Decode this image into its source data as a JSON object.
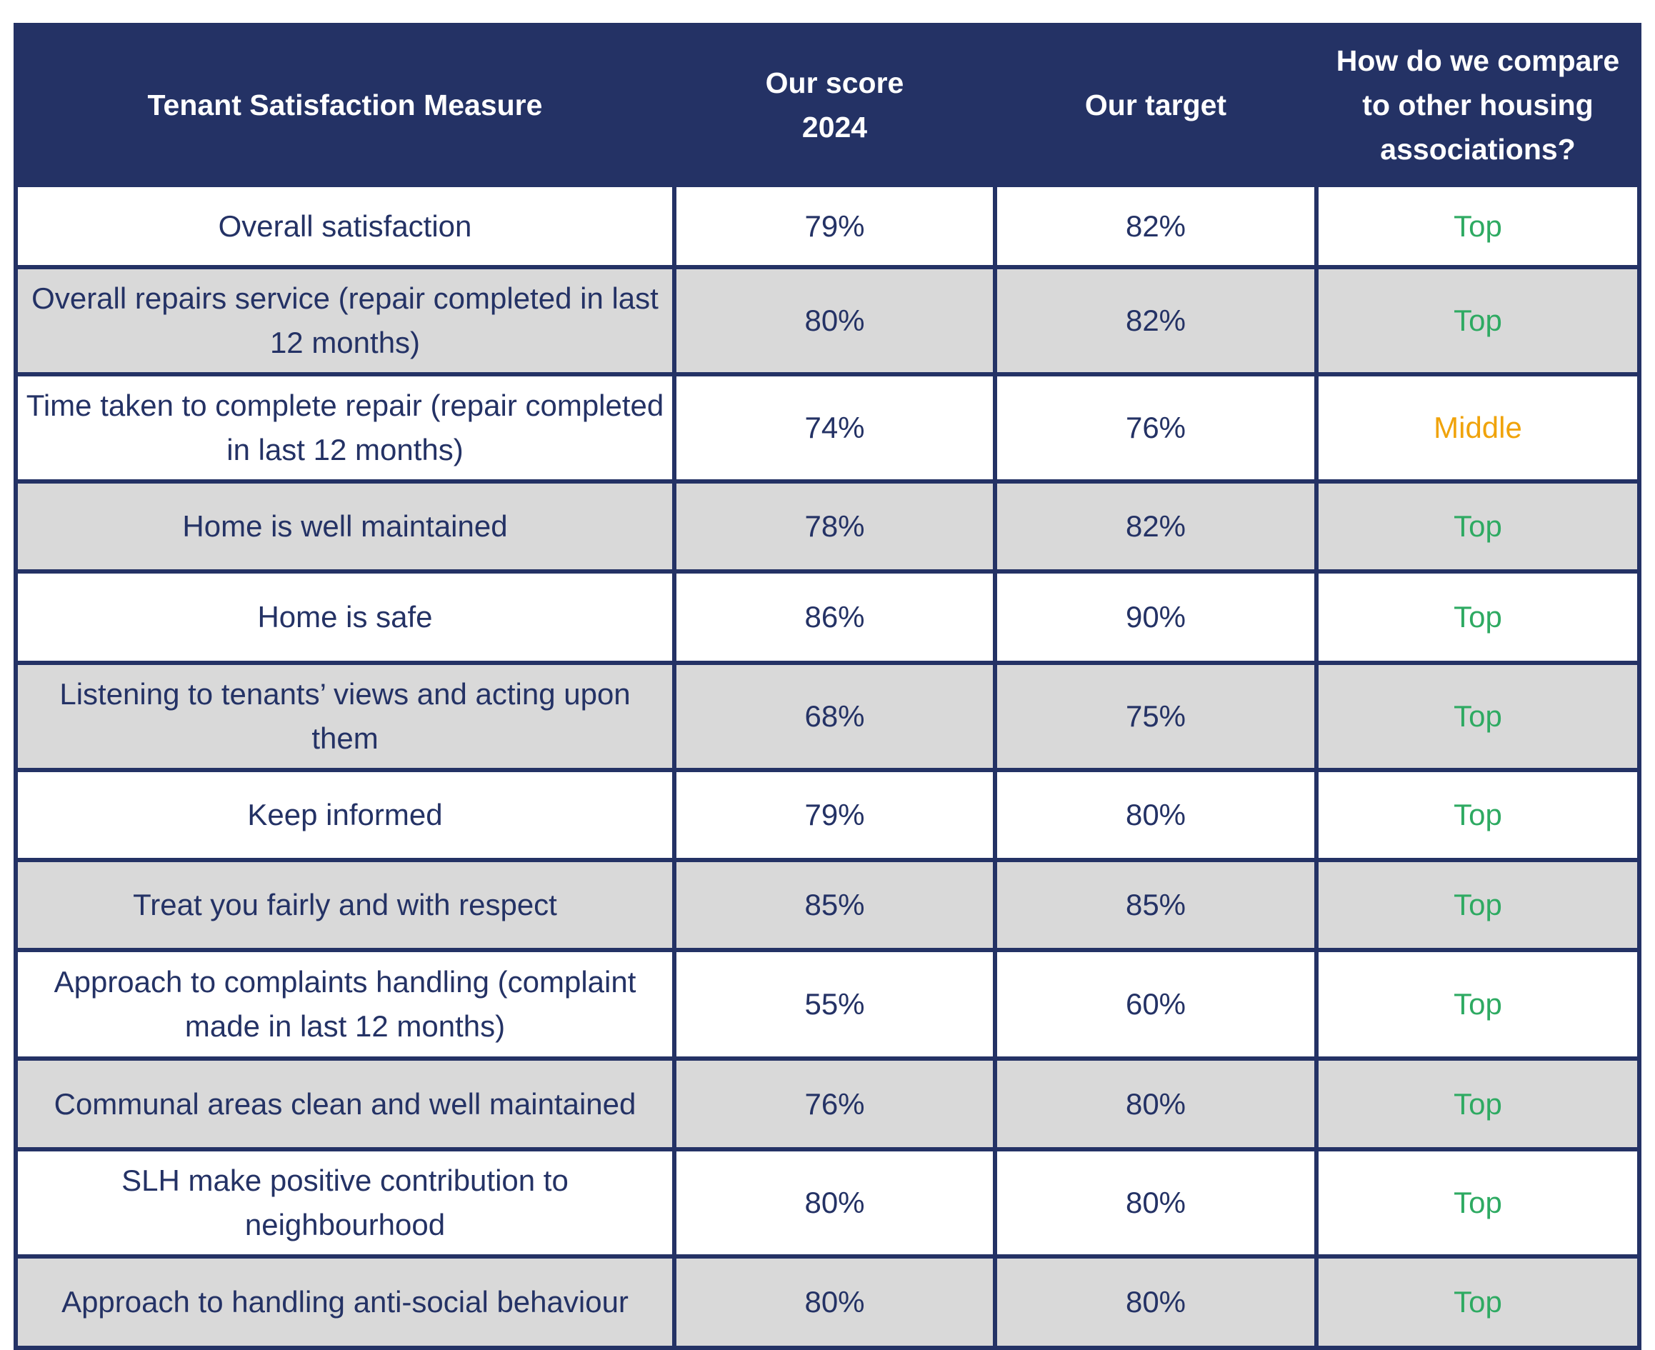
{
  "table": {
    "headers": {
      "measure": "Tenant Satisfaction Measure",
      "score": "Our score 2024",
      "target": "Our target",
      "compare": "How do we compare to other housing associations?"
    },
    "rows": [
      {
        "measure": "Overall satisfaction",
        "score": "79%",
        "target": "82%",
        "compare": "Top"
      },
      {
        "measure": "Overall repairs service (repair completed in last 12 months)",
        "score": "80%",
        "target": "82%",
        "compare": "Top"
      },
      {
        "measure": "Time taken to complete repair (repair completed in last 12 months)",
        "score": "74%",
        "target": "76%",
        "compare": "Middle"
      },
      {
        "measure": "Home is well maintained",
        "score": "78%",
        "target": "82%",
        "compare": "Top"
      },
      {
        "measure": "Home is safe",
        "score": "86%",
        "target": "90%",
        "compare": "Top"
      },
      {
        "measure": "Listening to tenants’ views and acting upon them",
        "score": "68%",
        "target": "75%",
        "compare": "Top"
      },
      {
        "measure": "Keep informed",
        "score": "79%",
        "target": "80%",
        "compare": "Top"
      },
      {
        "measure": "Treat you fairly and with respect",
        "score": "85%",
        "target": "85%",
        "compare": "Top"
      },
      {
        "measure": "Approach to complaints handling (complaint made in last 12 months)",
        "score": "55%",
        "target": "60%",
        "compare": "Top"
      },
      {
        "measure": "Communal areas clean and well maintained",
        "score": "76%",
        "target": "80%",
        "compare": "Top"
      },
      {
        "measure": "SLH make positive contribution to neighbourhood",
        "score": "80%",
        "target": "80%",
        "compare": "Top"
      },
      {
        "measure": "Approach to handling anti-social behaviour",
        "score": "80%",
        "target": "80%",
        "compare": "Top"
      }
    ]
  },
  "colors": {
    "header_bg": "#243265",
    "top": "#2eaa62",
    "middle": "#f0a30a",
    "alt_row": "#d9d9d9"
  }
}
